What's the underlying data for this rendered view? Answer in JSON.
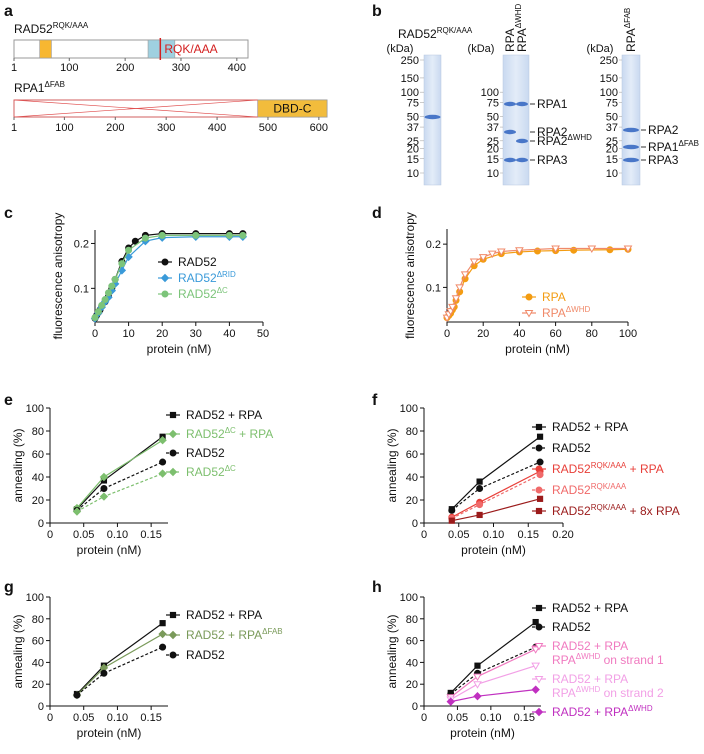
{
  "panel_labels": [
    "a",
    "b"
  ],
  "domain_maps": [
    {
      "title": [
        {
          "text": "RAD52"
        },
        {
          "text": "RQK/AAA",
          "sup": true
        }
      ],
      "length": 420,
      "ticks": [
        1,
        100,
        200,
        300,
        400
      ],
      "domains": [
        {
          "start": 47,
          "end": 68,
          "color": "#f7b731"
        },
        {
          "start": 241,
          "end": 289,
          "color": "#9fd0e0"
        }
      ],
      "mutation": {
        "position": 263,
        "label": "RQK/AAA"
      }
    },
    {
      "title": [
        {
          "text": "RPA1"
        },
        {
          "text": "ΔFAB",
          "sup": true
        }
      ],
      "length": 616,
      "ticks": [
        1,
        100,
        200,
        300,
        400,
        500,
        600
      ],
      "deletion": {
        "start": 1,
        "end": 480
      },
      "domains": [
        {
          "start": 480,
          "end": 616,
          "color": "#f2bc3c",
          "label": "DBD-C"
        }
      ]
    }
  ],
  "gels": [
    {
      "title": [
        {
          "text": "RAD52"
        },
        {
          "text": "RQK/AAA",
          "sup": true
        }
      ],
      "unit": "(kDa)",
      "ladder": [
        250,
        150,
        100,
        75,
        50,
        37,
        25,
        20,
        15,
        10
      ],
      "lanes": [],
      "bands": []
    },
    {
      "unit": "(kDa)",
      "ladder": [
        100,
        75,
        50,
        37,
        25,
        20,
        15,
        10
      ],
      "lanes": [
        "RPA",
        [
          {
            "text": "RPA"
          },
          {
            "text": "ΔWHD",
            "sup": true
          }
        ]
      ],
      "bands": [
        "RPA1",
        "RPA2",
        [
          {
            "text": "RPA2"
          },
          {
            "text": "ΔWHD",
            "sup": true
          }
        ],
        "RPA3"
      ]
    },
    {
      "unit": "(kDa)",
      "ladder": [
        250,
        150,
        100,
        75,
        50,
        37,
        25,
        20,
        15,
        10
      ],
      "lanes": [
        [
          {
            "text": "RPA"
          },
          {
            "text": "ΔFAB",
            "sup": true
          }
        ]
      ],
      "bands": [
        "RPA2",
        [
          {
            "text": "RPA1"
          },
          {
            "text": "ΔFAB",
            "sup": true
          }
        ],
        "RPA3"
      ]
    }
  ],
  "chart_data": [
    {
      "type": "line",
      "panel": "c",
      "xlabel": "protein (nM)",
      "ylabel": "fluorescence anisotropy",
      "xlim": [
        0,
        50
      ],
      "xticks": [
        0,
        10,
        20,
        30,
        40,
        50
      ],
      "ylim": [
        0.025,
        0.23
      ],
      "yticks": [
        0.1,
        0.2
      ],
      "series": [
        {
          "name": "RAD52",
          "color": "#111111",
          "marker": "circle",
          "x": [
            0,
            0.5,
            1,
            1.5,
            2,
            3,
            4,
            5,
            6,
            8,
            10,
            12,
            15,
            20,
            30,
            40,
            44
          ],
          "values": [
            0.033,
            0.04,
            0.046,
            0.052,
            0.06,
            0.07,
            0.082,
            0.1,
            0.12,
            0.16,
            0.19,
            0.205,
            0.218,
            0.222,
            0.222,
            0.222,
            0.222
          ]
        },
        {
          "name": [
            {
              "text": "RAD52"
            },
            {
              "text": "ΔRID",
              "sup": true
            }
          ],
          "color": "#3a9ad9",
          "marker": "diamond",
          "x": [
            0,
            1,
            2,
            3,
            4,
            5,
            6,
            8,
            10,
            15,
            20,
            30,
            40,
            44
          ],
          "values": [
            0.033,
            0.045,
            0.058,
            0.07,
            0.08,
            0.095,
            0.11,
            0.14,
            0.17,
            0.205,
            0.213,
            0.215,
            0.215,
            0.215
          ]
        },
        {
          "name": [
            {
              "text": "RAD52"
            },
            {
              "text": "ΔC",
              "sup": true
            }
          ],
          "color": "#7cc47a",
          "marker": "circle",
          "x": [
            0,
            1,
            2,
            3,
            4,
            5,
            6,
            8,
            10,
            15,
            20,
            30,
            40,
            44
          ],
          "values": [
            0.035,
            0.048,
            0.062,
            0.075,
            0.09,
            0.105,
            0.12,
            0.155,
            0.185,
            0.212,
            0.218,
            0.218,
            0.218,
            0.218
          ]
        }
      ]
    },
    {
      "type": "line",
      "panel": "d",
      "xlabel": "protein (nM)",
      "ylabel": "fluorescence anisotropy",
      "xlim": [
        0,
        100
      ],
      "xticks": [
        0,
        20,
        40,
        60,
        80,
        100
      ],
      "ylim": [
        0.02,
        0.235
      ],
      "yticks": [
        0.1,
        0.2
      ],
      "series": [
        {
          "name": "RPA",
          "color": "#f39c12",
          "marker": "circle",
          "x": [
            0,
            1,
            2,
            3,
            4,
            5,
            7,
            10,
            15,
            20,
            30,
            40,
            50,
            60,
            70,
            90,
            100
          ],
          "values": [
            0.03,
            0.035,
            0.04,
            0.048,
            0.055,
            0.07,
            0.09,
            0.12,
            0.15,
            0.165,
            0.178,
            0.182,
            0.184,
            0.185,
            0.186,
            0.187,
            0.188
          ]
        },
        {
          "name": [
            {
              "text": "RPA"
            },
            {
              "text": "ΔWHD",
              "sup": true
            }
          ],
          "color": "#f08a6a",
          "marker": "triangle-down",
          "x": [
            0,
            1,
            2,
            3,
            5,
            7,
            10,
            15,
            20,
            25,
            30,
            40,
            60,
            80,
            100
          ],
          "values": [
            0.03,
            0.038,
            0.045,
            0.055,
            0.075,
            0.1,
            0.13,
            0.16,
            0.17,
            0.178,
            0.183,
            0.186,
            0.19,
            0.19,
            0.19
          ]
        }
      ]
    },
    {
      "type": "line",
      "panel": "e",
      "xlabel": "protein (nM)",
      "ylabel": "annealing (%)",
      "x": [
        0.04,
        0.08,
        0.167
      ],
      "xlim": [
        0,
        0.175
      ],
      "xticks": [
        0,
        0.05,
        {
          "value": 0.1,
          "label": "0.10"
        },
        0.15
      ],
      "ylim": [
        0,
        100
      ],
      "yticks": [
        0,
        20,
        40,
        60,
        80,
        100
      ],
      "series": [
        {
          "name": "RAD52 + RPA",
          "color": "#111111",
          "marker": "square",
          "values": [
            12,
            37,
            75
          ]
        },
        {
          "name": [
            {
              "text": "RAD52"
            },
            {
              "text": "ΔC",
              "sup": true
            },
            {
              "text": " + RPA"
            }
          ],
          "color": "#7dbf6e",
          "marker": "diamond",
          "values": [
            13,
            40,
            72
          ]
        },
        {
          "name": "RAD52",
          "color": "#111111",
          "marker": "circle",
          "dash": true,
          "values": [
            11,
            30,
            53
          ]
        },
        {
          "name": [
            {
              "text": "RAD52"
            },
            {
              "text": "ΔC",
              "sup": true
            }
          ],
          "color": "#7dbf6e",
          "marker": "diamond",
          "dash": true,
          "values": [
            10,
            23,
            43
          ]
        }
      ]
    },
    {
      "type": "line",
      "panel": "f",
      "xlabel": "protein (nM)",
      "ylabel": "annealing (%)",
      "x": [
        0.04,
        0.08,
        0.167
      ],
      "xlim": [
        0,
        0.2
      ],
      "xticks": [
        0,
        0.05,
        {
          "value": 0.1,
          "label": "0.10"
        },
        0.15,
        {
          "value": 0.2,
          "label": "0.20"
        }
      ],
      "ylim": [
        0,
        100
      ],
      "yticks": [
        0,
        20,
        40,
        60,
        80,
        100
      ],
      "series": [
        {
          "name": "RAD52 + RPA",
          "color": "#111111",
          "marker": "square",
          "values": [
            12,
            36,
            75
          ]
        },
        {
          "name": "RAD52",
          "color": "#111111",
          "marker": "circle",
          "dash": true,
          "values": [
            11,
            30,
            53
          ]
        },
        {
          "name": [
            {
              "text": "RAD52"
            },
            {
              "text": "RQK/AAA",
              "sup": true
            },
            {
              "text": " + RPA"
            }
          ],
          "color": "#e8403a",
          "marker": "circle",
          "values": [
            5,
            18,
            45
          ]
        },
        {
          "name": [
            {
              "text": "RAD52"
            },
            {
              "text": "RQK/AAA",
              "sup": true
            }
          ],
          "color": "#f06a6a",
          "marker": "circle",
          "dash": true,
          "values": [
            4,
            16,
            42
          ]
        },
        {
          "name": [
            {
              "text": "RAD52"
            },
            {
              "text": "RQK/AAA",
              "sup": true
            },
            {
              "text": " + 8x RPA"
            }
          ],
          "color": "#9b1b1b",
          "marker": "square",
          "values": [
            2,
            7,
            21
          ]
        }
      ]
    },
    {
      "type": "line",
      "panel": "g",
      "xlabel": "protein (nM)",
      "ylabel": "annealing (%)",
      "x": [
        0.04,
        0.08,
        0.167
      ],
      "xlim": [
        0,
        0.175
      ],
      "xticks": [
        0,
        0.05,
        {
          "value": 0.1,
          "label": "0.10"
        },
        0.15
      ],
      "ylim": [
        0,
        100
      ],
      "yticks": [
        0,
        20,
        40,
        60,
        80,
        100
      ],
      "series": [
        {
          "name": "RAD52 + RPA",
          "color": "#111111",
          "marker": "square",
          "values": [
            11,
            37,
            76
          ]
        },
        {
          "name": [
            {
              "text": "RAD52 + RPA"
            },
            {
              "text": "ΔFAB",
              "sup": true
            }
          ],
          "color": "#7a9a5a",
          "marker": "diamond",
          "values": [
            10,
            35,
            66
          ]
        },
        {
          "name": "RAD52",
          "color": "#111111",
          "marker": "circle",
          "dash": true,
          "values": [
            10,
            30,
            54
          ]
        }
      ]
    },
    {
      "type": "line",
      "panel": "h",
      "xlabel": "protein (nM)",
      "ylabel": "annealing (%)",
      "x": [
        0.04,
        0.08,
        0.167
      ],
      "xlim": [
        0,
        0.175
      ],
      "xticks": [
        0,
        0.05,
        {
          "value": 0.1,
          "label": "0.10"
        },
        0.15
      ],
      "ylim": [
        0,
        100
      ],
      "yticks": [
        0,
        20,
        40,
        60,
        80,
        100
      ],
      "series": [
        {
          "name": "RAD52 + RPA",
          "color": "#111111",
          "marker": "square",
          "values": [
            12,
            37,
            77
          ]
        },
        {
          "name": "RAD52",
          "color": "#111111",
          "marker": "circle",
          "dash": true,
          "values": [
            11,
            30,
            54
          ]
        },
        {
          "name": [
            {
              "text": "RAD52 + RPA"
            },
            {
              "text": "RPA",
              "br": true
            },
            {
              "text": "ΔWHD",
              "sup": true
            },
            {
              "text": " on strand 1"
            }
          ],
          "color": "#f07ac0",
          "marker": "triangle-down",
          "values": [
            8,
            27,
            52
          ]
        },
        {
          "name": [
            {
              "text": "RAD52 + RPA"
            },
            {
              "text": "RPA",
              "br": true
            },
            {
              "text": "ΔWHD",
              "sup": true
            },
            {
              "text": " on strand 2"
            }
          ],
          "color": "#f2a0e6",
          "marker": "triangle-down",
          "values": [
            6,
            20,
            37
          ]
        },
        {
          "name": [
            {
              "text": "RAD52 + RPA"
            },
            {
              "text": "ΔWHD",
              "sup": true
            }
          ],
          "color": "#c030c0",
          "marker": "diamond",
          "values": [
            4,
            9,
            15
          ]
        }
      ]
    }
  ]
}
